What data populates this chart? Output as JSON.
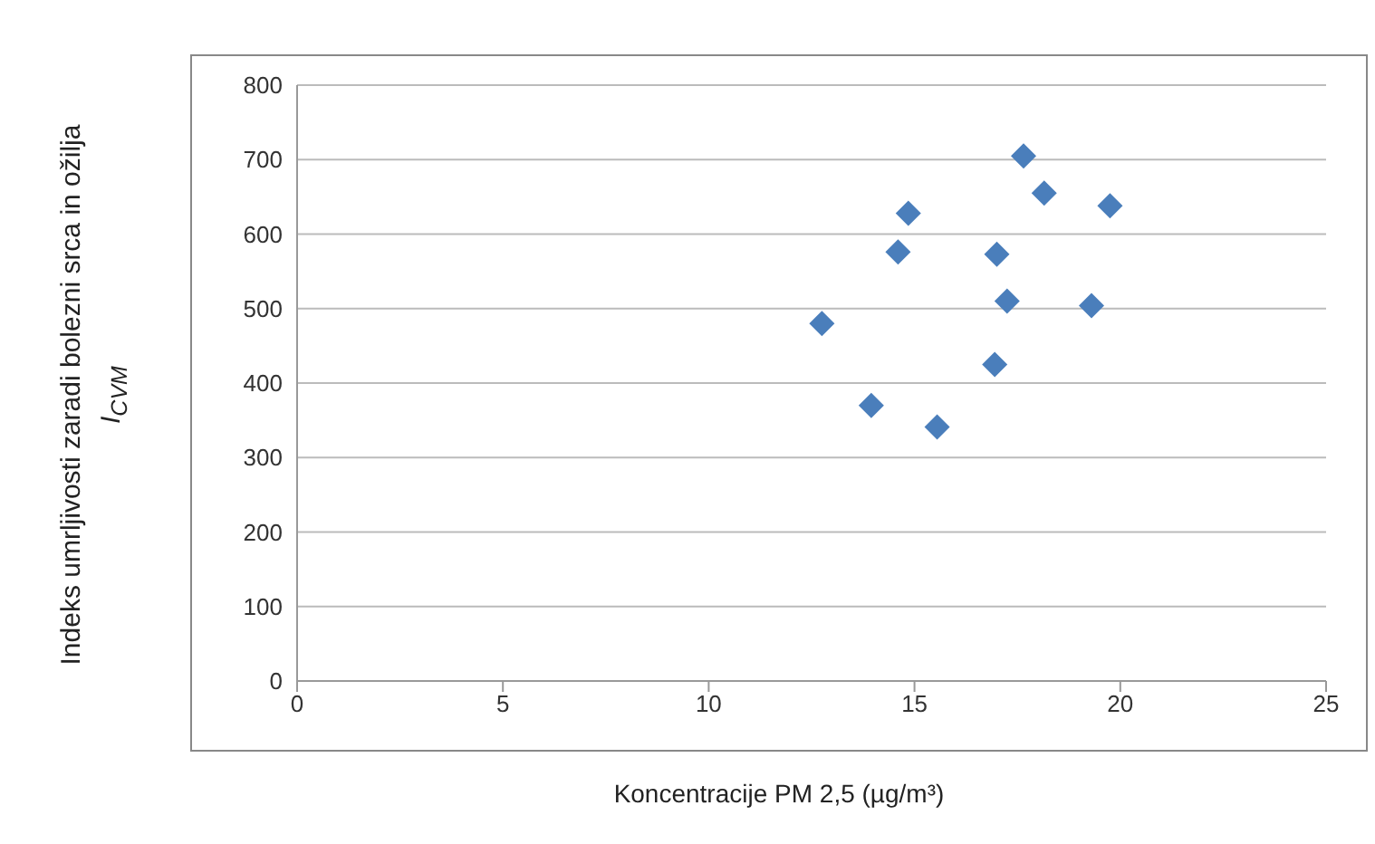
{
  "chart_data": {
    "type": "scatter",
    "xlabel": "Koncentracije PM 2,5 (µg/m³)",
    "ylabel": "Indeks umrljivosti zaradi bolezni srca in ožilja\nI$_{CVM}$",
    "xlim": [
      0,
      25
    ],
    "xticks": [
      0,
      5,
      10,
      15,
      20,
      25
    ],
    "ylim": [
      0,
      800
    ],
    "yticks": [
      0,
      100,
      200,
      300,
      400,
      500,
      600,
      700,
      800
    ],
    "grid": "y",
    "marker": "diamond",
    "legend": false,
    "series": [
      {
        "color": "#4a7ebb",
        "x": [
          17.65,
          18.15,
          19.75,
          14.85,
          14.6,
          17.0,
          17.25,
          19.3,
          12.75,
          16.95,
          13.95,
          15.55
        ],
        "values": [
          705,
          655,
          638,
          628,
          576,
          573,
          510,
          504,
          480,
          425,
          370,
          341
        ]
      }
    ]
  }
}
